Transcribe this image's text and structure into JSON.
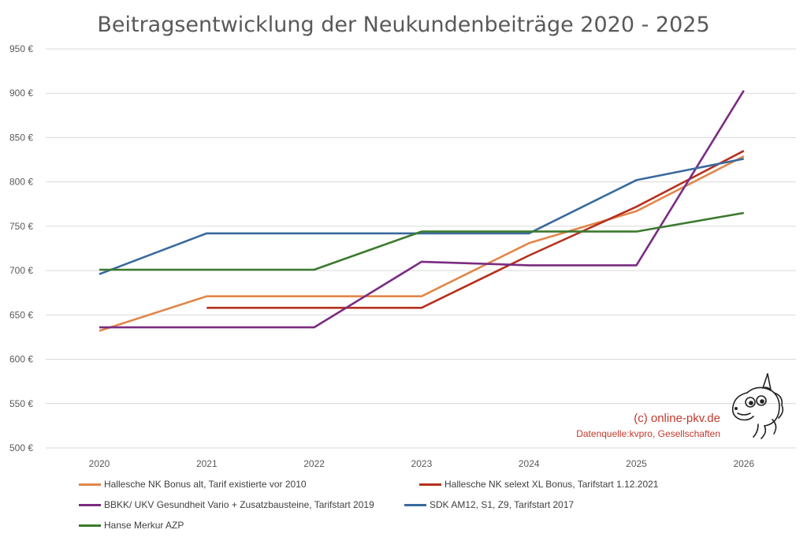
{
  "chart_data": {
    "type": "line",
    "title": "Beitragsentwicklung der Neukundenbeiträge 2020 - 2025",
    "xlabel": "",
    "ylabel": "",
    "categories": [
      "2020",
      "2021",
      "2022",
      "2023",
      "2024",
      "2025",
      "2026"
    ],
    "yticks": [
      "500 €",
      "550 €",
      "600 €",
      "650 €",
      "700 €",
      "750 €",
      "800 €",
      "850 €",
      "900 €",
      "950 €"
    ],
    "ylim": [
      500,
      950
    ],
    "grid": true,
    "legend_position": "bottom",
    "series": [
      {
        "name": "Hallesche NK Bonus alt, Tarif existierte vor 2010",
        "color": "#E0874A",
        "values": [
          632,
          671,
          671,
          671,
          731,
          767,
          829
        ]
      },
      {
        "name": "Hallesche NK selext XL Bonus, Tarifstart 1.12.2021",
        "color": "#B5301C",
        "values": [
          null,
          658,
          658,
          658,
          717,
          772,
          835
        ]
      },
      {
        "name": "BBKK/ UKV Gesundheit Vario + Zusatzbausteine, Tarifstart 2019",
        "color": "#7B2C82",
        "values": [
          636,
          636,
          636,
          710,
          706,
          706,
          903
        ]
      },
      {
        "name": "SDK AM12, S1, Z9, Tarifstart 2017",
        "color": "#3A6A9E",
        "values": [
          696,
          742,
          742,
          742,
          742,
          802,
          826
        ]
      },
      {
        "name": "Hanse Merkur AZP",
        "color": "#3B7A2E",
        "values": [
          701,
          701,
          701,
          744,
          744,
          744,
          765
        ]
      }
    ]
  },
  "credit": {
    "site": "(c) online-pkv.de",
    "source": "Datenquelle:kvpro, Gesellschaften"
  }
}
